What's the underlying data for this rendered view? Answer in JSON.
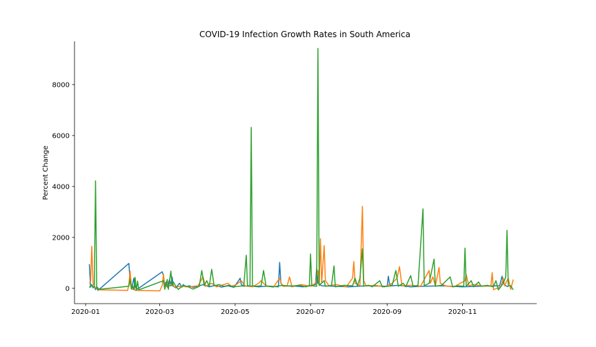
{
  "chart_data": {
    "type": "line",
    "title": "COVID-19 Infection Growth Rates in South America",
    "xlabel": "",
    "ylabel": "Percent Change",
    "xlim": [
      "2019-12-23",
      "2020-12-31"
    ],
    "ylim": [
      -600,
      9700
    ],
    "x_ticks": [
      "2020-01",
      "2020-03",
      "2020-05",
      "2020-07",
      "2020-09",
      "2020-11"
    ],
    "y_ticks": [
      0,
      2000,
      4000,
      6000,
      8000
    ],
    "grid": false,
    "series": [
      {
        "color": "#1f77b4",
        "points": [
          [
            "2020-01-04",
            950
          ],
          [
            "2020-01-05",
            50
          ],
          [
            "2020-01-06",
            150
          ],
          [
            "2020-01-07",
            20
          ],
          [
            "2020-01-08",
            80
          ],
          [
            "2020-01-09",
            -50
          ],
          [
            "2020-01-10",
            60
          ],
          [
            "2020-01-12",
            -40
          ],
          [
            "2020-02-05",
            980
          ],
          [
            "2020-02-06",
            300
          ],
          [
            "2020-02-07",
            80
          ],
          [
            "2020-02-08",
            150
          ],
          [
            "2020-02-09",
            400
          ],
          [
            "2020-02-10",
            50
          ],
          [
            "2020-02-12",
            -30
          ],
          [
            "2020-03-03",
            650
          ],
          [
            "2020-03-04",
            500
          ],
          [
            "2020-03-05",
            100
          ],
          [
            "2020-03-06",
            250
          ],
          [
            "2020-03-07",
            50
          ],
          [
            "2020-03-09",
            350
          ],
          [
            "2020-03-10",
            100
          ],
          [
            "2020-03-11",
            450
          ],
          [
            "2020-03-12",
            80
          ],
          [
            "2020-03-14",
            20
          ],
          [
            "2020-03-17",
            200
          ],
          [
            "2020-03-18",
            120
          ],
          [
            "2020-03-19",
            50
          ],
          [
            "2020-03-20",
            150
          ],
          [
            "2020-03-22",
            60
          ],
          [
            "2020-03-25",
            100
          ],
          [
            "2020-03-28",
            40
          ],
          [
            "2020-04-01",
            80
          ],
          [
            "2020-04-05",
            150
          ],
          [
            "2020-04-10",
            60
          ],
          [
            "2020-04-15",
            120
          ],
          [
            "2020-04-20",
            50
          ],
          [
            "2020-04-25",
            100
          ],
          [
            "2020-04-30",
            40
          ],
          [
            "2020-05-04",
            320
          ],
          [
            "2020-05-05",
            400
          ],
          [
            "2020-05-06",
            150
          ],
          [
            "2020-05-08",
            80
          ],
          [
            "2020-05-12",
            100
          ],
          [
            "2020-05-20",
            60
          ],
          [
            "2020-05-28",
            90
          ],
          [
            "2020-06-05",
            60
          ],
          [
            "2020-06-06",
            1020
          ],
          [
            "2020-06-07",
            200
          ],
          [
            "2020-06-09",
            80
          ],
          [
            "2020-06-15",
            100
          ],
          [
            "2020-06-25",
            60
          ],
          [
            "2020-07-05",
            150
          ],
          [
            "2020-07-06",
            800
          ],
          [
            "2020-07-07",
            200
          ],
          [
            "2020-07-10",
            100
          ],
          [
            "2020-07-20",
            80
          ],
          [
            "2020-08-01",
            60
          ],
          [
            "2020-08-15",
            100
          ],
          [
            "2020-09-01",
            80
          ],
          [
            "2020-09-02",
            480
          ],
          [
            "2020-09-03",
            150
          ],
          [
            "2020-09-05",
            100
          ],
          [
            "2020-09-10",
            120
          ],
          [
            "2020-09-20",
            60
          ],
          [
            "2020-10-01",
            80
          ],
          [
            "2020-10-15",
            100
          ],
          [
            "2020-11-01",
            60
          ],
          [
            "2020-11-15",
            80
          ],
          [
            "2020-12-01",
            100
          ],
          [
            "2020-12-03",
            480
          ],
          [
            "2020-12-04",
            200
          ],
          [
            "2020-12-06",
            100
          ],
          [
            "2020-12-08",
            60
          ]
        ]
      },
      {
        "color": "#ff7f0e",
        "points": [
          [
            "2020-01-04",
            200
          ],
          [
            "2020-01-05",
            250
          ],
          [
            "2020-01-06",
            1650
          ],
          [
            "2020-01-07",
            200
          ],
          [
            "2020-01-08",
            80
          ],
          [
            "2020-01-09",
            20
          ],
          [
            "2020-01-10",
            -20
          ],
          [
            "2020-01-13",
            -60
          ],
          [
            "2020-02-04",
            -80
          ],
          [
            "2020-02-05",
            150
          ],
          [
            "2020-02-06",
            680
          ],
          [
            "2020-02-07",
            100
          ],
          [
            "2020-02-08",
            -40
          ],
          [
            "2020-02-09",
            50
          ],
          [
            "2020-02-10",
            -80
          ],
          [
            "2020-03-01",
            -100
          ],
          [
            "2020-03-03",
            120
          ],
          [
            "2020-03-04",
            550
          ],
          [
            "2020-03-05",
            80
          ],
          [
            "2020-03-09",
            100
          ],
          [
            "2020-03-11",
            200
          ],
          [
            "2020-03-13",
            50
          ],
          [
            "2020-03-18",
            80
          ],
          [
            "2020-03-25",
            60
          ],
          [
            "2020-04-01",
            100
          ],
          [
            "2020-04-05",
            450
          ],
          [
            "2020-04-07",
            80
          ],
          [
            "2020-04-12",
            200
          ],
          [
            "2020-04-16",
            60
          ],
          [
            "2020-04-20",
            120
          ],
          [
            "2020-04-25",
            200
          ],
          [
            "2020-04-28",
            80
          ],
          [
            "2020-05-02",
            150
          ],
          [
            "2020-05-06",
            300
          ],
          [
            "2020-05-09",
            100
          ],
          [
            "2020-05-15",
            60
          ],
          [
            "2020-05-20",
            200
          ],
          [
            "2020-05-22",
            300
          ],
          [
            "2020-05-26",
            100
          ],
          [
            "2020-06-01",
            50
          ],
          [
            "2020-06-06",
            400
          ],
          [
            "2020-06-08",
            100
          ],
          [
            "2020-06-12",
            80
          ],
          [
            "2020-06-14",
            450
          ],
          [
            "2020-06-16",
            60
          ],
          [
            "2020-06-23",
            150
          ],
          [
            "2020-07-01",
            80
          ],
          [
            "2020-07-05",
            200
          ],
          [
            "2020-07-07",
            700
          ],
          [
            "2020-07-08",
            100
          ],
          [
            "2020-07-09",
            1950
          ],
          [
            "2020-07-10",
            200
          ],
          [
            "2020-07-12",
            1680
          ],
          [
            "2020-07-13",
            300
          ],
          [
            "2020-07-16",
            100
          ],
          [
            "2020-07-22",
            150
          ],
          [
            "2020-07-30",
            60
          ],
          [
            "2020-08-04",
            400
          ],
          [
            "2020-08-05",
            1050
          ],
          [
            "2020-08-06",
            200
          ],
          [
            "2020-08-10",
            100
          ],
          [
            "2020-08-12",
            3220
          ],
          [
            "2020-08-13",
            300
          ],
          [
            "2020-08-15",
            100
          ],
          [
            "2020-08-22",
            120
          ],
          [
            "2020-08-30",
            60
          ],
          [
            "2020-09-05",
            200
          ],
          [
            "2020-09-09",
            400
          ],
          [
            "2020-09-11",
            850
          ],
          [
            "2020-09-13",
            100
          ],
          [
            "2020-09-20",
            120
          ],
          [
            "2020-09-28",
            80
          ],
          [
            "2020-10-05",
            700
          ],
          [
            "2020-10-06",
            200
          ],
          [
            "2020-10-08",
            450
          ],
          [
            "2020-10-10",
            100
          ],
          [
            "2020-10-13",
            820
          ],
          [
            "2020-10-14",
            200
          ],
          [
            "2020-10-18",
            100
          ],
          [
            "2020-10-25",
            60
          ],
          [
            "2020-11-03",
            300
          ],
          [
            "2020-11-04",
            550
          ],
          [
            "2020-11-06",
            100
          ],
          [
            "2020-11-10",
            150
          ],
          [
            "2020-11-18",
            80
          ],
          [
            "2020-11-24",
            100
          ],
          [
            "2020-11-25",
            620
          ],
          [
            "2020-11-26",
            -50
          ],
          [
            "2020-12-02",
            60
          ],
          [
            "2020-12-04",
            400
          ],
          [
            "2020-12-05",
            100
          ],
          [
            "2020-12-08",
            400
          ],
          [
            "2020-12-10",
            -40
          ],
          [
            "2020-12-12",
            350
          ]
        ]
      },
      {
        "color": "#2ca02c",
        "points": [
          [
            "2020-01-04",
            30
          ],
          [
            "2020-01-06",
            150
          ],
          [
            "2020-01-07",
            60
          ],
          [
            "2020-01-08",
            50
          ],
          [
            "2020-01-09",
            4220
          ],
          [
            "2020-01-10",
            50
          ],
          [
            "2020-01-11",
            -80
          ],
          [
            "2020-01-12",
            -40
          ],
          [
            "2020-02-05",
            80
          ],
          [
            "2020-02-06",
            350
          ],
          [
            "2020-02-07",
            -30
          ],
          [
            "2020-02-08",
            100
          ],
          [
            "2020-02-09",
            -50
          ],
          [
            "2020-02-10",
            430
          ],
          [
            "2020-02-11",
            -80
          ],
          [
            "2020-02-12",
            280
          ],
          [
            "2020-02-13",
            -60
          ],
          [
            "2020-03-04",
            300
          ],
          [
            "2020-03-05",
            -40
          ],
          [
            "2020-03-06",
            150
          ],
          [
            "2020-03-07",
            350
          ],
          [
            "2020-03-08",
            -40
          ],
          [
            "2020-03-10",
            680
          ],
          [
            "2020-03-11",
            100
          ],
          [
            "2020-03-12",
            250
          ],
          [
            "2020-03-14",
            80
          ],
          [
            "2020-03-16",
            -40
          ],
          [
            "2020-03-20",
            120
          ],
          [
            "2020-03-24",
            60
          ],
          [
            "2020-03-28",
            -30
          ],
          [
            "2020-04-02",
            80
          ],
          [
            "2020-04-04",
            700
          ],
          [
            "2020-04-06",
            100
          ],
          [
            "2020-04-08",
            300
          ],
          [
            "2020-04-10",
            80
          ],
          [
            "2020-04-12",
            750
          ],
          [
            "2020-04-14",
            100
          ],
          [
            "2020-04-18",
            150
          ],
          [
            "2020-04-22",
            80
          ],
          [
            "2020-04-26",
            120
          ],
          [
            "2020-04-30",
            60
          ],
          [
            "2020-05-04",
            80
          ],
          [
            "2020-05-08",
            100
          ],
          [
            "2020-05-10",
            1300
          ],
          [
            "2020-05-11",
            80
          ],
          [
            "2020-05-13",
            100
          ],
          [
            "2020-05-14",
            6320
          ],
          [
            "2020-05-15",
            100
          ],
          [
            "2020-05-18",
            80
          ],
          [
            "2020-05-22",
            100
          ],
          [
            "2020-05-24",
            700
          ],
          [
            "2020-05-26",
            80
          ],
          [
            "2020-06-01",
            60
          ],
          [
            "2020-06-08",
            120
          ],
          [
            "2020-06-15",
            80
          ],
          [
            "2020-06-22",
            120
          ],
          [
            "2020-06-27",
            60
          ],
          [
            "2020-06-30",
            100
          ],
          [
            "2020-07-01",
            1350
          ],
          [
            "2020-07-02",
            100
          ],
          [
            "2020-07-06",
            80
          ],
          [
            "2020-07-07",
            9420
          ],
          [
            "2020-07-08",
            120
          ],
          [
            "2020-07-12",
            300
          ],
          [
            "2020-07-13",
            80
          ],
          [
            "2020-07-18",
            120
          ],
          [
            "2020-07-20",
            880
          ],
          [
            "2020-07-21",
            60
          ],
          [
            "2020-07-28",
            120
          ],
          [
            "2020-08-04",
            100
          ],
          [
            "2020-08-06",
            400
          ],
          [
            "2020-08-08",
            100
          ],
          [
            "2020-08-10",
            400
          ],
          [
            "2020-08-12",
            1550
          ],
          [
            "2020-08-13",
            80
          ],
          [
            "2020-08-17",
            120
          ],
          [
            "2020-08-20",
            60
          ],
          [
            "2020-08-26",
            300
          ],
          [
            "2020-08-28",
            60
          ],
          [
            "2020-09-05",
            100
          ],
          [
            "2020-09-08",
            700
          ],
          [
            "2020-09-10",
            80
          ],
          [
            "2020-09-14",
            200
          ],
          [
            "2020-09-16",
            60
          ],
          [
            "2020-09-20",
            500
          ],
          [
            "2020-09-22",
            80
          ],
          [
            "2020-09-26",
            120
          ],
          [
            "2020-09-30",
            3120
          ],
          [
            "2020-10-01",
            100
          ],
          [
            "2020-10-05",
            200
          ],
          [
            "2020-10-09",
            1150
          ],
          [
            "2020-10-10",
            80
          ],
          [
            "2020-10-15",
            120
          ],
          [
            "2020-10-22",
            450
          ],
          [
            "2020-10-24",
            60
          ],
          [
            "2020-10-28",
            100
          ],
          [
            "2020-11-02",
            80
          ],
          [
            "2020-11-03",
            1580
          ],
          [
            "2020-11-04",
            80
          ],
          [
            "2020-11-08",
            300
          ],
          [
            "2020-11-10",
            60
          ],
          [
            "2020-11-14",
            250
          ],
          [
            "2020-11-16",
            80
          ],
          [
            "2020-11-21",
            120
          ],
          [
            "2020-11-26",
            60
          ],
          [
            "2020-11-28",
            300
          ],
          [
            "2020-11-30",
            -60
          ],
          [
            "2020-12-04",
            200
          ],
          [
            "2020-12-06",
            450
          ],
          [
            "2020-12-07",
            2280
          ],
          [
            "2020-12-08",
            100
          ],
          [
            "2020-12-10",
            100
          ],
          [
            "2020-12-12",
            -60
          ]
        ]
      }
    ]
  }
}
